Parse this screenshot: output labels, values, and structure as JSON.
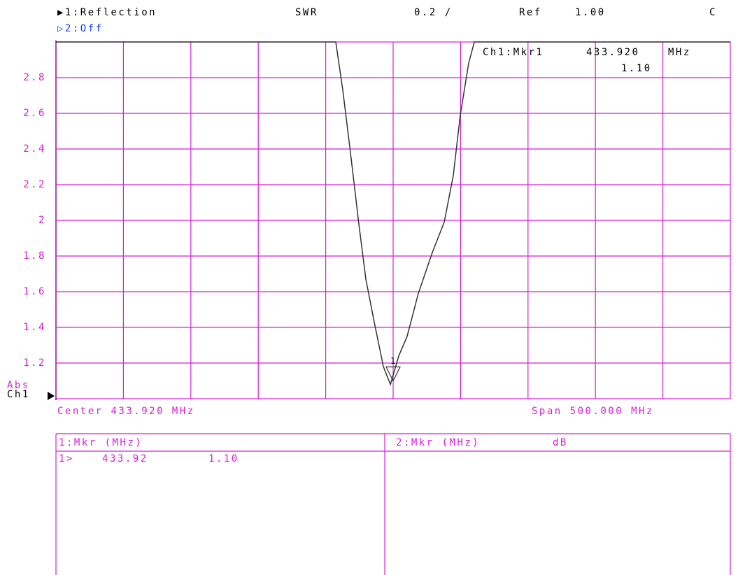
{
  "header": {
    "trace1": "▶1:Reflection",
    "format": "SWR",
    "scale": "0.2 /",
    "ref_label": "Ref",
    "ref_value": "1.00",
    "channel_flag": "C",
    "trace2": "▷2:Off"
  },
  "marker_readout": {
    "label": "Ch1:Mkr1",
    "freq": "433.920",
    "unit": "MHz",
    "value": "1.10"
  },
  "side": {
    "abs": "Abs",
    "ch": "Ch1"
  },
  "chart_data": {
    "type": "line",
    "x": [
      183.92,
      391.4,
      396.6,
      401.8,
      408.5,
      413.7,
      419.9,
      426.7,
      431.9,
      438.1,
      444.3,
      452.6,
      463.0,
      471.8,
      478.5,
      483.7,
      489.9,
      494.1,
      683.92
    ],
    "series": [
      {
        "color": "#333333",
        "values": [
          3,
          3,
          2.73,
          2.41,
          1.98,
          1.67,
          1.43,
          1.18,
          1.08,
          1.24,
          1.35,
          1.59,
          1.82,
          1.99,
          2.25,
          2.59,
          2.88,
          3,
          3
        ]
      }
    ],
    "xlim": [
      183.92,
      683.92
    ],
    "xticks": [
      233.92,
      283.92,
      333.92,
      383.92,
      433.92,
      483.92,
      533.92,
      583.92,
      633.92
    ],
    "ylim": [
      1,
      3
    ],
    "yticks": [
      1.2,
      1.4,
      1.6,
      1.8,
      2,
      2.2,
      2.4,
      2.6,
      2.8
    ],
    "grid": true,
    "marker": {
      "label": "1",
      "x": 433.92,
      "value": 1.1
    },
    "center": "Center 433.920 MHz",
    "span": "Span 500.000 MHz"
  },
  "table": {
    "headers": [
      "1:Mkr (MHz)",
      "2:Mkr (MHz)",
      "dB"
    ],
    "rows": [
      [
        "1>",
        "433.92",
        "1.10"
      ]
    ]
  }
}
